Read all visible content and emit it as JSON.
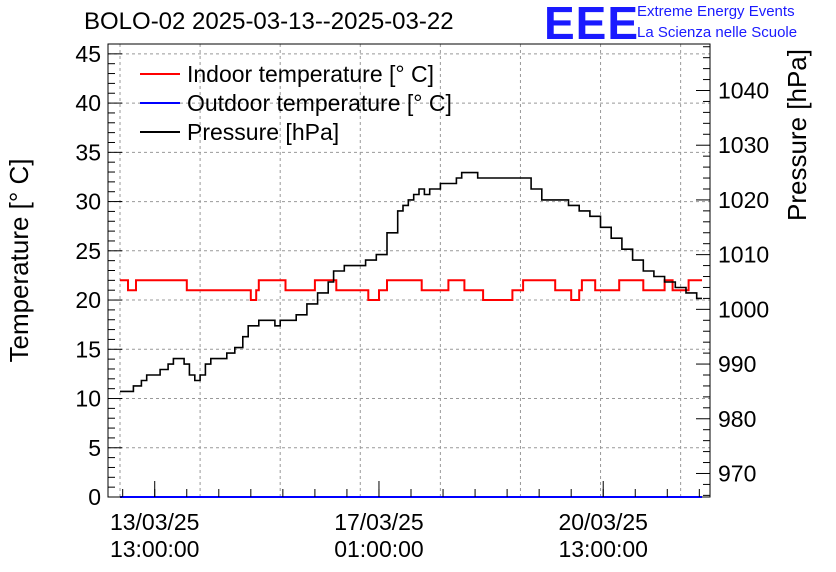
{
  "header": {
    "title": "BOLO-02 2025-03-13--2025-03-22"
  },
  "logo": {
    "letters": "EEE",
    "line1": "Extreme Energy Events",
    "line2": "La Scienza nelle Scuole",
    "color": "#1a1aff"
  },
  "chart_data": {
    "type": "line",
    "title": "BOLO-02 2025-03-13--2025-03-22",
    "xlabel": "",
    "ylabel": "Temperature [° C]",
    "ylabel_right": "Pressure [hPa]",
    "x_unit": "hours since 13/03/25 00:00",
    "xlim": [
      -4.5,
      221
    ],
    "ylim": [
      0,
      46
    ],
    "ylim_right": [
      965.7,
      1048.5
    ],
    "grid": true,
    "legend_position": "top-left",
    "x_ticks": [
      {
        "x": 13,
        "label_date": "13/03/25",
        "label_time": "13:00:00"
      },
      {
        "x": 97,
        "label_date": "17/03/25",
        "label_time": "01:00:00"
      },
      {
        "x": 181,
        "label_date": "20/03/25",
        "label_time": "13:00:00"
      }
    ],
    "y_ticks": [
      0,
      5,
      10,
      15,
      20,
      25,
      30,
      35,
      40,
      45
    ],
    "y_ticks_right": [
      970,
      980,
      990,
      1000,
      1010,
      1020,
      1030,
      1040
    ],
    "series": [
      {
        "name": "Indoor temperature [° C]",
        "color": "#ff0000",
        "axis": "left",
        "x": [
          0,
          2,
          3,
          5,
          6,
          24,
          25,
          48,
          49,
          51,
          52,
          61,
          62,
          72,
          73,
          80,
          81,
          92,
          93,
          96,
          97,
          99,
          100,
          112,
          113,
          122,
          123,
          128,
          129,
          135,
          136,
          146,
          147,
          150,
          151,
          162,
          163,
          168,
          169,
          172,
          173,
          177,
          178,
          186,
          187,
          195,
          196,
          203,
          204,
          206,
          207,
          212,
          213,
          218
        ],
        "y": [
          22,
          22,
          21,
          21,
          22,
          22,
          21,
          21,
          20,
          21,
          22,
          22,
          21,
          21,
          22,
          22,
          21,
          21,
          20,
          20,
          21,
          21,
          22,
          22,
          21,
          21,
          22,
          22,
          21,
          21,
          20,
          20,
          21,
          21,
          22,
          22,
          21,
          21,
          20,
          21,
          22,
          22,
          21,
          21,
          22,
          22,
          21,
          21,
          22,
          22,
          21,
          21,
          22,
          22
        ]
      },
      {
        "name": "Outdoor temperature [° C]",
        "color": "#0000ff",
        "axis": "left",
        "x": [
          0,
          218
        ],
        "y": [
          0,
          0
        ]
      },
      {
        "name": "Pressure [hPa]",
        "color": "#000000",
        "axis": "right",
        "x": [
          0,
          3,
          5,
          8,
          10,
          12,
          15,
          18,
          20,
          22,
          24,
          26,
          28,
          30,
          32,
          34,
          37,
          40,
          43,
          46,
          48,
          52,
          56,
          58,
          60,
          63,
          66,
          70,
          74,
          78,
          80,
          84,
          86,
          89,
          92,
          96,
          100,
          104,
          106,
          108,
          110,
          112,
          114,
          116,
          118,
          120,
          123,
          126,
          128,
          130,
          134,
          138,
          142,
          146,
          150,
          154,
          158,
          162,
          164,
          168,
          172,
          176,
          180,
          184,
          188,
          192,
          196,
          200,
          204,
          208,
          212,
          216,
          218
        ],
        "y": [
          985,
          985,
          986,
          987,
          988,
          988,
          989,
          990,
          991,
          991,
          990,
          988,
          987,
          988,
          990,
          991,
          991,
          992,
          993,
          995,
          997,
          998,
          998,
          997,
          998,
          998,
          999,
          1001,
          1003,
          1005,
          1007,
          1008,
          1008,
          1008,
          1009,
          1010,
          1014,
          1018,
          1019,
          1020,
          1021,
          1022,
          1021,
          1022,
          1022,
          1023,
          1023,
          1024,
          1025,
          1025,
          1024,
          1024,
          1024,
          1024,
          1024,
          1022,
          1020,
          1020,
          1020,
          1019,
          1018,
          1017,
          1015,
          1013,
          1011,
          1009,
          1007,
          1006,
          1005,
          1004,
          1003,
          1002,
          1002
        ]
      }
    ]
  }
}
